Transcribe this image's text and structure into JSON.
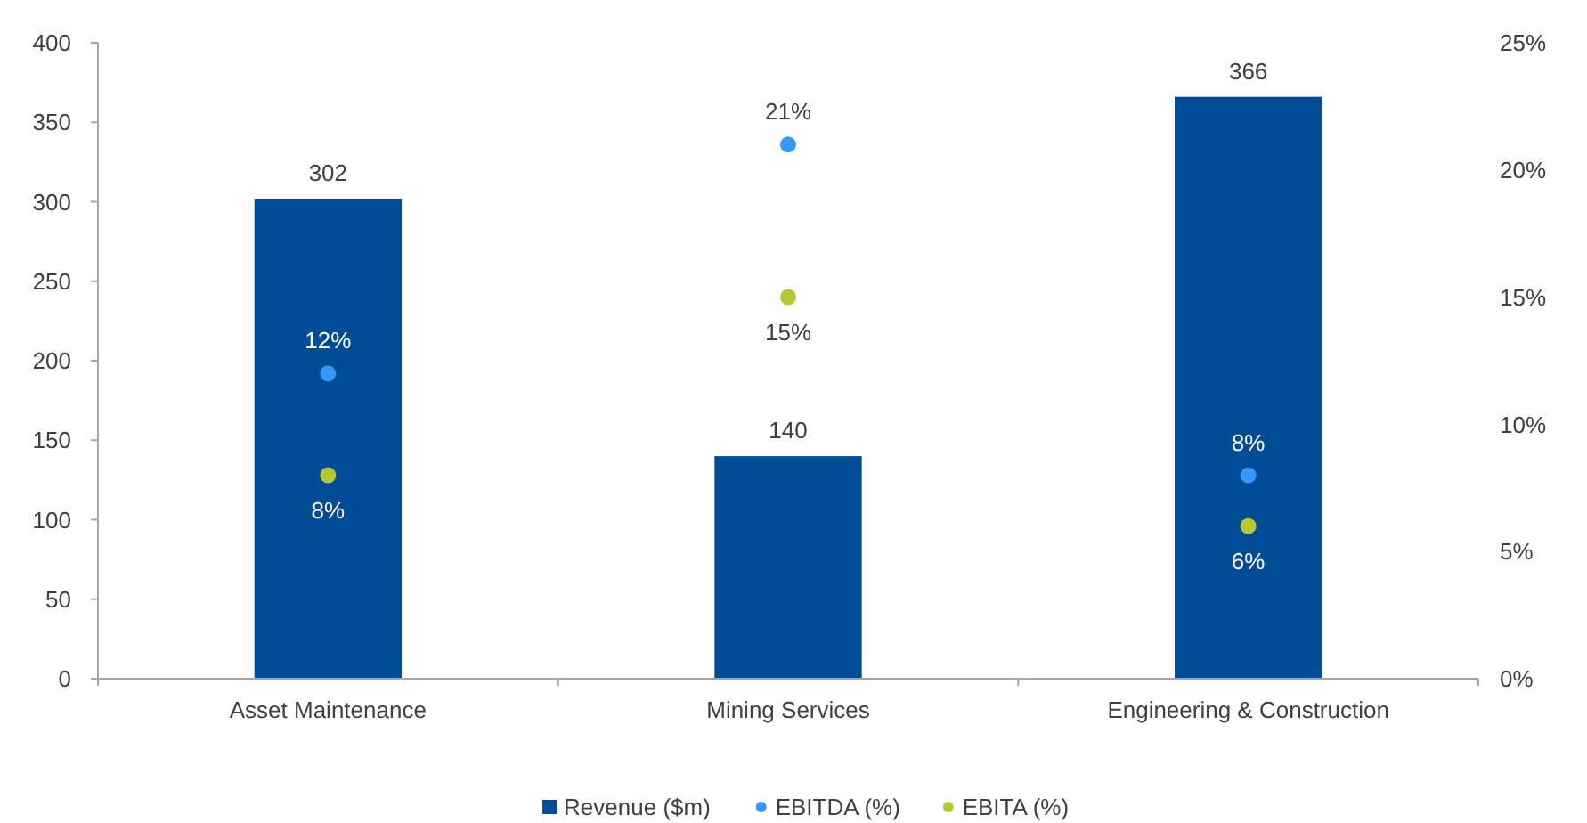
{
  "chart_data": {
    "type": "bar",
    "categories": [
      "Asset Maintenance",
      "Mining Services",
      "Engineering & Construction"
    ],
    "series": [
      {
        "name": "Revenue ($m)",
        "color": "#004c97",
        "values": [
          302,
          140,
          366
        ],
        "value_labels": [
          "302",
          "140",
          "366"
        ]
      },
      {
        "name": "EBITDA (%)",
        "type": "scatter",
        "axis": "y2",
        "x": [
          "Asset Maintenance",
          "Mining Services",
          "Engineering & Construction"
        ],
        "color": "#3399ff",
        "values": [
          12,
          21,
          8
        ],
        "value_labels": [
          "12%",
          "21%",
          "8%"
        ]
      },
      {
        "name": "EBITA (%)",
        "type": "scatter",
        "axis": "y2",
        "x": [
          "Asset Maintenance",
          "Mining Services",
          "Engineering & Construction"
        ],
        "color": "#b8c832",
        "values": [
          8,
          15,
          6
        ],
        "value_labels": [
          "8%",
          "15%",
          "6%"
        ]
      }
    ],
    "ylim": [
      0,
      400
    ],
    "yticks": [
      0,
      50,
      100,
      150,
      200,
      250,
      300,
      350,
      400
    ],
    "y2lim": [
      0,
      25
    ],
    "y2ticks": [
      {
        "value": 0,
        "label": "0%"
      },
      {
        "value": 5,
        "label": "5%"
      },
      {
        "value": 10,
        "label": "10%"
      },
      {
        "value": 15,
        "label": "15%"
      },
      {
        "value": 20,
        "label": "20%"
      },
      {
        "value": 25,
        "label": "25%"
      }
    ],
    "legend": "bottom",
    "marker": "circle"
  }
}
